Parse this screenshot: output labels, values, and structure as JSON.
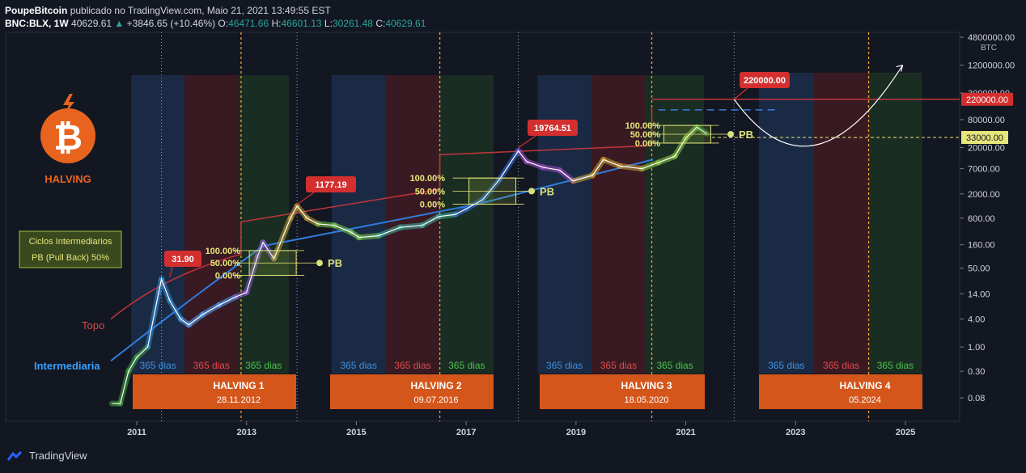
{
  "header": {
    "author": "PoupeBitcoin",
    "published": "publicado no TradingView.com, Maio 21, 2021 13:49:55 EST",
    "symbol": "BNC:BLX, 1W",
    "last": "40629.61",
    "change": "+3846.65 (+10.46%)",
    "o_label": "O:",
    "o": "46471.66",
    "h_label": "H:",
    "h": "46601.13",
    "l_label": "L:",
    "l": "30261.48",
    "c_label": "C:",
    "c": "40629.61"
  },
  "footer": {
    "brand": "TradingView"
  },
  "logo": {
    "text": "HALVING",
    "symbol": "₿"
  },
  "legend_box": {
    "line1": "Ciclos Intermediarios",
    "line2": "PB (Pull Back) 50%"
  },
  "line_labels": {
    "top": "Topo",
    "mid": "Intermediaria"
  },
  "price_tags": [
    "31.90",
    "1177.19",
    "19764.51",
    "220000.00"
  ],
  "fib_levels": [
    "100.00%",
    "50.00%",
    "0.00%"
  ],
  "pb_label": "PB",
  "days_label": "365 dias",
  "halvings": [
    {
      "name": "HALVING 1",
      "date": "28.11.2012"
    },
    {
      "name": "HALVING 2",
      "date": "09.07.2016"
    },
    {
      "name": "HALVING 3",
      "date": "18.05.2020"
    },
    {
      "name": "HALVING 4",
      "date": "05.2024"
    }
  ],
  "axis_unit": "BTC",
  "axis_right_tags": {
    "top": "220000.00",
    "pb": "33000.00"
  },
  "colors": {
    "bg": "#131722",
    "blue_zone": "#1b2a44",
    "red_zone": "#3a1a22",
    "green_zone": "#1a2d23",
    "halving_box": "#d4561a",
    "tag_red": "#d32f2f",
    "fib_yellow": "#e6e67a"
  },
  "chart_data": {
    "type": "line",
    "title": "BNC:BLX, 1W",
    "y_scale": "log",
    "x_ticks": [
      "2011",
      "2013",
      "2015",
      "2017",
      "2019",
      "2021",
      "2023",
      "2025"
    ],
    "y_ticks": [
      "4800000.00",
      "1200000.00",
      "300000.00",
      "80000.00",
      "20000.00",
      "7000.00",
      "2000.00",
      "600.00",
      "160.00",
      "50.00",
      "14.00",
      "4.00",
      "1.00",
      "0.30",
      "0.08"
    ],
    "series": [
      {
        "values_note": "",
        "x": [
          2010.55,
          2010.7,
          2010.85,
          2011.0,
          2011.2,
          2011.4,
          2011.45,
          2011.6,
          2011.8,
          2011.95,
          2012.2,
          2012.5,
          2012.8,
          2013.0,
          2013.2,
          2013.3,
          2013.5,
          2013.8,
          2013.92,
          2014.1,
          2014.3,
          2014.6,
          2014.9,
          2015.05,
          2015.4,
          2015.8,
          2016.2,
          2016.5,
          2016.8,
          2017.0,
          2017.3,
          2017.6,
          2017.95,
          2018.1,
          2018.4,
          2018.7,
          2018.95,
          2019.3,
          2019.5,
          2019.8,
          2020.2,
          2020.5,
          2020.8,
          2021.0,
          2021.2,
          2021.38
        ],
        "values": [
          0.06,
          0.06,
          0.3,
          0.6,
          1.0,
          15,
          29,
          10,
          4,
          3,
          5,
          8,
          12,
          15,
          90,
          180,
          80,
          600,
          1100,
          600,
          450,
          420,
          300,
          230,
          250,
          380,
          420,
          650,
          720,
          950,
          1500,
          4000,
          17000,
          10000,
          7500,
          6500,
          3800,
          5000,
          11000,
          8000,
          7000,
          9500,
          13000,
          32000,
          55000,
          40000
        ]
      }
    ],
    "annotations": [
      "31.90",
      "1177.19",
      "19764.51",
      "220000.00",
      "33000.00"
    ]
  }
}
